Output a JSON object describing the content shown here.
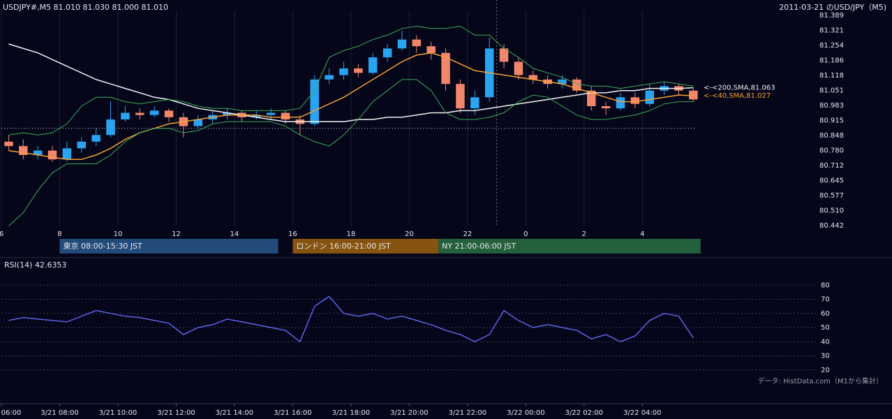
{
  "chart_data": [
    {
      "type": "candlestick",
      "title": "USDJPY#,M5 81.010 81.030 81.000 81.010",
      "subtitle": "2011-03-21 のUSD/JPY（M5)",
      "x": [
        0.25,
        0.75,
        1.25,
        1.75,
        2.25,
        2.75,
        3.25,
        3.75,
        4.25,
        4.75,
        5.25,
        5.75,
        6.25,
        6.75,
        7.25,
        7.75,
        8.25,
        8.75,
        9.25,
        9.75,
        10.25,
        10.75,
        11.25,
        11.75,
        12.25,
        12.75,
        13.25,
        13.75,
        14.25,
        14.75,
        15.25,
        15.75,
        16.25,
        16.75,
        17.25,
        17.75,
        18.25,
        18.75,
        19.25,
        19.75,
        20.25,
        20.75,
        21.25,
        21.75,
        22.25,
        22.75,
        23.25,
        23.75
      ],
      "open": [
        80.82,
        80.8,
        80.76,
        80.78,
        80.74,
        80.79,
        80.82,
        80.85,
        80.92,
        80.95,
        80.94,
        80.96,
        80.93,
        80.89,
        80.92,
        80.94,
        80.95,
        80.93,
        80.94,
        80.95,
        80.92,
        80.9,
        81.1,
        81.12,
        81.15,
        81.13,
        81.2,
        81.24,
        81.28,
        81.25,
        81.22,
        81.08,
        80.97,
        81.02,
        81.24,
        81.18,
        81.12,
        81.1,
        81.08,
        81.1,
        81.05,
        80.98,
        80.97,
        81.02,
        80.99,
        81.05,
        81.07,
        81.05
      ],
      "high": [
        80.85,
        80.83,
        80.8,
        80.8,
        80.82,
        80.84,
        80.88,
        81.0,
        80.98,
        80.97,
        80.98,
        80.97,
        80.95,
        80.94,
        80.96,
        80.97,
        80.96,
        80.96,
        80.97,
        80.96,
        80.94,
        81.12,
        81.15,
        81.18,
        81.17,
        81.22,
        81.26,
        81.32,
        81.3,
        81.27,
        81.24,
        81.1,
        81.05,
        81.29,
        81.26,
        81.2,
        81.14,
        81.12,
        81.12,
        81.11,
        81.07,
        81.0,
        81.04,
        81.04,
        81.08,
        81.09,
        81.08,
        81.06
      ],
      "low": [
        80.78,
        80.74,
        80.74,
        80.73,
        80.73,
        80.77,
        80.8,
        80.84,
        80.91,
        80.92,
        80.93,
        80.91,
        80.84,
        80.88,
        80.9,
        80.92,
        80.91,
        80.92,
        80.92,
        80.9,
        80.85,
        80.89,
        81.08,
        81.1,
        81.11,
        81.12,
        81.18,
        81.23,
        81.22,
        81.19,
        81.05,
        80.95,
        80.94,
        81.0,
        81.15,
        81.1,
        81.08,
        81.06,
        81.06,
        81.04,
        80.96,
        80.94,
        80.96,
        80.97,
        80.98,
        81.03,
        81.03,
        81.0
      ],
      "close": [
        80.8,
        80.76,
        80.78,
        80.74,
        80.79,
        80.82,
        80.85,
        80.92,
        80.95,
        80.94,
        80.96,
        80.93,
        80.89,
        80.92,
        80.94,
        80.95,
        80.93,
        80.94,
        80.95,
        80.92,
        80.9,
        81.1,
        81.12,
        81.15,
        81.13,
        81.2,
        81.24,
        81.28,
        81.25,
        81.22,
        81.08,
        80.97,
        81.02,
        81.24,
        81.18,
        81.12,
        81.1,
        81.08,
        81.1,
        81.05,
        80.98,
        80.97,
        81.02,
        80.99,
        81.05,
        81.07,
        81.05,
        81.01
      ],
      "up_color": "#2aa3f0",
      "down_color": "#f2866a",
      "series": [
        {
          "label": "<-<200,SMA,81.063",
          "color": "#f2f2f2",
          "values": [
            81.26,
            81.24,
            81.22,
            81.19,
            81.16,
            81.13,
            81.1,
            81.08,
            81.06,
            81.04,
            81.02,
            81.01,
            80.99,
            80.97,
            80.96,
            80.95,
            80.94,
            80.93,
            80.92,
            80.91,
            80.91,
            80.91,
            80.91,
            80.91,
            80.92,
            80.92,
            80.93,
            80.93,
            80.94,
            80.95,
            80.95,
            80.96,
            80.96,
            80.97,
            80.98,
            80.99,
            81.0,
            81.01,
            81.02,
            81.03,
            81.04,
            81.04,
            81.05,
            81.05,
            81.06,
            81.06,
            81.06,
            81.063
          ]
        },
        {
          "label": "<-<40,SMA,81.027",
          "color": "#f5a033",
          "values": [
            80.78,
            80.77,
            80.76,
            80.75,
            80.74,
            80.74,
            80.76,
            80.79,
            80.83,
            80.86,
            80.88,
            80.9,
            80.91,
            80.92,
            80.93,
            80.94,
            80.94,
            80.94,
            80.93,
            80.93,
            80.93,
            80.96,
            80.99,
            81.02,
            81.06,
            81.1,
            81.14,
            81.18,
            81.21,
            81.22,
            81.2,
            81.17,
            81.14,
            81.13,
            81.12,
            81.11,
            81.1,
            81.09,
            81.08,
            81.06,
            81.04,
            81.02,
            81.0,
            81.0,
            81.01,
            81.02,
            81.03,
            81.027
          ]
        },
        {
          "color": "#3fae5a",
          "values": [
            80.85,
            80.86,
            80.85,
            80.86,
            80.9,
            80.98,
            81.02,
            81.02,
            81.0,
            80.99,
            81.0,
            81.01,
            81.0,
            80.98,
            80.97,
            80.97,
            80.96,
            80.96,
            80.96,
            80.96,
            80.97,
            81.05,
            81.2,
            81.23,
            81.25,
            81.28,
            81.3,
            81.33,
            81.34,
            81.33,
            81.33,
            81.34,
            81.3,
            81.3,
            81.24,
            81.2,
            81.15,
            81.13,
            81.11,
            81.08,
            81.07,
            81.07,
            81.06,
            81.07,
            81.08,
            81.09,
            81.08,
            81.07
          ]
        },
        {
          "color": "#3fae5a",
          "values": [
            80.44,
            80.5,
            80.6,
            80.68,
            80.72,
            80.72,
            80.72,
            80.76,
            80.82,
            80.86,
            80.88,
            80.88,
            80.86,
            80.87,
            80.9,
            80.91,
            80.91,
            80.91,
            80.91,
            80.89,
            80.85,
            80.82,
            80.8,
            80.85,
            80.92,
            81.0,
            81.05,
            81.1,
            81.1,
            81.05,
            80.95,
            80.92,
            80.92,
            80.93,
            80.95,
            81.0,
            81.03,
            81.02,
            80.98,
            80.94,
            80.92,
            80.92,
            80.93,
            80.94,
            80.96,
            80.99,
            81.0,
            81.0
          ]
        }
      ],
      "hline": 80.88,
      "vline": 17,
      "xlim": [
        0,
        28.03
      ],
      "xticks": [
        {
          "value": 0,
          "label": "6"
        },
        {
          "value": 2,
          "label": "8"
        },
        {
          "value": 4,
          "label": "10"
        },
        {
          "value": 6,
          "label": "12"
        },
        {
          "value": 8,
          "label": "14"
        },
        {
          "value": 10,
          "label": "16"
        },
        {
          "value": 12,
          "label": "18"
        },
        {
          "value": 14,
          "label": "20"
        },
        {
          "value": 16,
          "label": "22"
        },
        {
          "value": 18,
          "label": "0"
        },
        {
          "value": 20,
          "label": "2"
        },
        {
          "value": 22,
          "label": "4"
        }
      ],
      "ylim": [
        80.442,
        81.389
      ],
      "yticks": [
        81.389,
        81.321,
        81.254,
        81.186,
        81.118,
        81.051,
        80.983,
        80.915,
        80.848,
        {
          "value": 80.78,
          "label": "80.780"
        },
        80.712,
        80.645,
        80.577,
        {
          "value": 80.51,
          "label": "80.510"
        },
        80.442
      ],
      "sessions": [
        {
          "label": "東京 08:00-15:30 JST",
          "start": 2,
          "end": 9.5,
          "color": "#234b7a"
        },
        {
          "label": "ロンドン 16:00-21:00 JST",
          "start": 10,
          "end": 15,
          "color": "#87540f"
        },
        {
          "label": "NY 21:00-06:00 JST",
          "start": 15,
          "end": 24,
          "color": "#25603d"
        }
      ]
    },
    {
      "type": "line",
      "title": "RSI(14) 42.6353",
      "x": [
        0.25,
        0.75,
        1.25,
        1.75,
        2.25,
        2.75,
        3.25,
        3.75,
        4.25,
        4.75,
        5.25,
        5.75,
        6.25,
        6.75,
        7.25,
        7.75,
        8.25,
        8.75,
        9.25,
        9.75,
        10.25,
        10.75,
        11.25,
        11.75,
        12.25,
        12.75,
        13.25,
        13.75,
        14.25,
        14.75,
        15.25,
        15.75,
        16.25,
        16.75,
        17.25,
        17.75,
        18.25,
        18.75,
        19.25,
        19.75,
        20.25,
        20.75,
        21.25,
        21.75,
        22.25,
        22.75,
        23.25,
        23.75
      ],
      "series": [
        {
          "color": "#5b63e8",
          "values": [
            55,
            57,
            56,
            55,
            54,
            58,
            62,
            60,
            58,
            57,
            55,
            53,
            45,
            50,
            52,
            56,
            54,
            52,
            50,
            48,
            40,
            65,
            72,
            60,
            58,
            60,
            56,
            58,
            55,
            52,
            48,
            45,
            40,
            45,
            62,
            55,
            50,
            52,
            50,
            48,
            42,
            45,
            40,
            44,
            55,
            60,
            58,
            42.6353
          ]
        }
      ],
      "xlim": [
        0,
        28.03
      ],
      "xticks": [
        {
          "value": 0,
          "label": "06:00"
        },
        {
          "value": 2,
          "label": "3/21 08:00"
        },
        {
          "value": 4,
          "label": "3/21 10:00"
        },
        {
          "value": 6,
          "label": "3/21 12:00"
        },
        {
          "value": 8,
          "label": "3/21 14:00"
        },
        {
          "value": 10,
          "label": "3/21 16:00"
        },
        {
          "value": 12,
          "label": "3/21 18:00"
        },
        {
          "value": 14,
          "label": "3/21 20:00"
        },
        {
          "value": 16,
          "label": "3/21 22:00"
        },
        {
          "value": 18,
          "label": "3/22 00:00"
        },
        {
          "value": 20,
          "label": "3/22 02:00"
        },
        {
          "value": 22,
          "label": "3/22 04:00"
        }
      ],
      "ylim": [
        10,
        90
      ],
      "yticks": [
        20,
        30,
        40,
        50,
        60,
        70,
        80
      ],
      "grid": true,
      "annotation": "データ: HistData.com（M1から集計）"
    }
  ]
}
